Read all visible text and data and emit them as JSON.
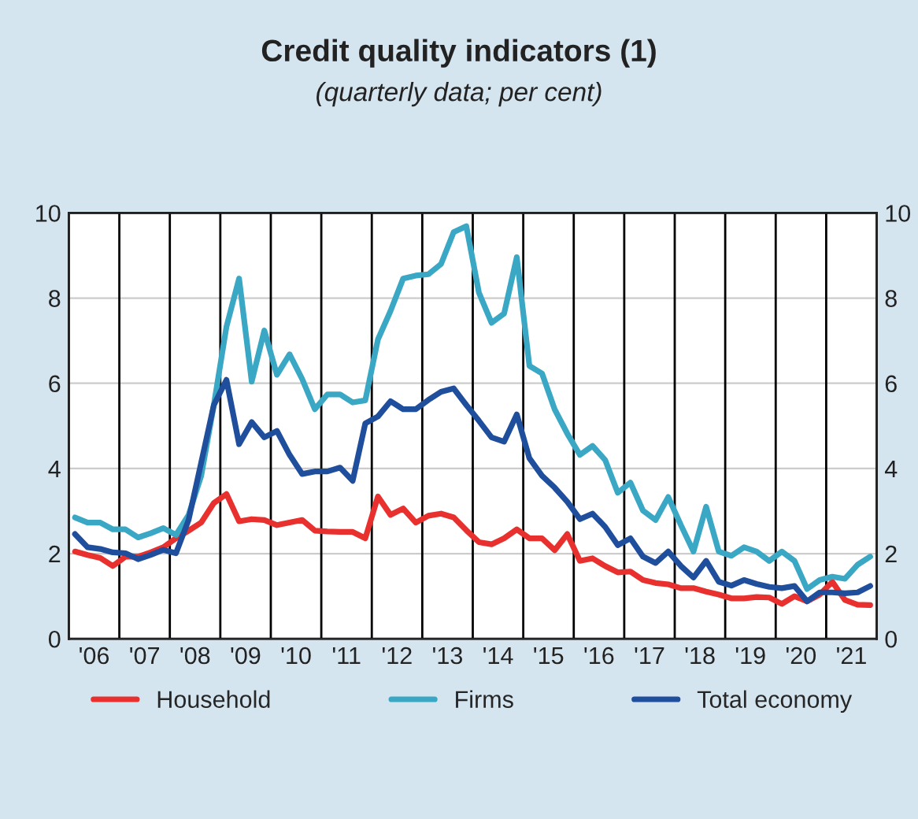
{
  "chart_data": {
    "type": "line",
    "title": "Credit quality indicators (1)",
    "subtitle": "(quarterly data; per cent)",
    "x": [
      "2006-02-15",
      "2006-05-15",
      "2006-08-15",
      "2006-11-15",
      "2007-02-15",
      "2007-05-15",
      "2007-08-15",
      "2007-11-15",
      "2008-02-15",
      "2008-05-15",
      "2008-08-15",
      "2008-11-15",
      "2009-02-15",
      "2009-05-15",
      "2009-08-15",
      "2009-11-15",
      "2010-02-15",
      "2010-05-15",
      "2010-08-15",
      "2010-11-15",
      "2011-02-15",
      "2011-05-15",
      "2011-08-15",
      "2011-11-15",
      "2012-02-15",
      "2012-05-15",
      "2012-08-15",
      "2012-11-15",
      "2013-02-15",
      "2013-05-15",
      "2013-08-15",
      "2013-11-15",
      "2014-02-15",
      "2014-05-15",
      "2014-08-15",
      "2014-11-15",
      "2015-02-15",
      "2015-05-15",
      "2015-08-15",
      "2015-11-15",
      "2016-02-15",
      "2016-05-15",
      "2016-08-15",
      "2016-11-15",
      "2017-02-15",
      "2017-05-15",
      "2017-08-15",
      "2017-11-15",
      "2018-02-15",
      "2018-05-15",
      "2018-08-15",
      "2018-11-15",
      "2019-02-15",
      "2019-05-15",
      "2019-08-15",
      "2019-11-15",
      "2020-02-15",
      "2020-05-15",
      "2020-08-15",
      "2020-11-15",
      "2021-02-15",
      "2021-05-15",
      "2021-08-15",
      "2021-11-15"
    ],
    "series": [
      {
        "name": "Household",
        "color": "#e8302f",
        "values": [
          2.05,
          1.97,
          1.9,
          1.71,
          1.93,
          1.93,
          2.03,
          2.15,
          2.36,
          2.54,
          2.73,
          3.19,
          3.4,
          2.76,
          2.81,
          2.79,
          2.67,
          2.73,
          2.79,
          2.54,
          2.52,
          2.51,
          2.51,
          2.36,
          3.34,
          2.91,
          3.06,
          2.73,
          2.89,
          2.94,
          2.85,
          2.55,
          2.27,
          2.22,
          2.36,
          2.57,
          2.36,
          2.36,
          2.08,
          2.46,
          1.83,
          1.89,
          1.71,
          1.56,
          1.58,
          1.38,
          1.31,
          1.28,
          1.19,
          1.19,
          1.11,
          1.04,
          0.95,
          0.95,
          0.98,
          0.97,
          0.82,
          1.0,
          0.88,
          1.04,
          1.34,
          0.91,
          0.8,
          0.79
        ]
      },
      {
        "name": "Firms",
        "color": "#3aa8c4",
        "values": [
          2.85,
          2.73,
          2.73,
          2.57,
          2.57,
          2.38,
          2.48,
          2.6,
          2.44,
          2.91,
          3.83,
          5.49,
          7.33,
          8.46,
          6.04,
          7.24,
          6.2,
          6.68,
          6.1,
          5.39,
          5.74,
          5.74,
          5.55,
          5.6,
          7.03,
          7.7,
          8.46,
          8.53,
          8.56,
          8.8,
          9.55,
          9.69,
          8.13,
          7.42,
          7.64,
          8.96,
          6.41,
          6.23,
          5.39,
          4.82,
          4.32,
          4.53,
          4.2,
          3.43,
          3.67,
          3.01,
          2.79,
          3.33,
          2.67,
          2.05,
          3.1,
          2.05,
          1.95,
          2.15,
          2.05,
          1.83,
          2.05,
          1.83,
          1.17,
          1.38,
          1.46,
          1.41,
          1.74,
          1.93
        ]
      },
      {
        "name": "Total economy",
        "color": "#1f4e9c",
        "values": [
          2.46,
          2.15,
          2.11,
          2.03,
          2.01,
          1.87,
          1.97,
          2.09,
          2.01,
          2.79,
          4.14,
          5.49,
          6.08,
          4.57,
          5.09,
          4.73,
          4.88,
          4.32,
          3.87,
          3.93,
          3.93,
          4.02,
          3.71,
          5.06,
          5.22,
          5.58,
          5.39,
          5.39,
          5.61,
          5.8,
          5.88,
          5.49,
          5.12,
          4.73,
          4.63,
          5.27,
          4.24,
          3.83,
          3.55,
          3.22,
          2.81,
          2.94,
          2.63,
          2.2,
          2.36,
          1.93,
          1.78,
          2.05,
          1.71,
          1.44,
          1.83,
          1.34,
          1.25,
          1.38,
          1.29,
          1.22,
          1.19,
          1.24,
          0.88,
          1.09,
          1.09,
          1.07,
          1.09,
          1.24
        ]
      }
    ],
    "xlim": [
      "2006-01-01",
      "2022-01-01"
    ],
    "xticks": [
      {
        "value": "2006-07-01",
        "label": "'06"
      },
      {
        "value": "2007-07-01",
        "label": "'07"
      },
      {
        "value": "2008-07-01",
        "label": "'08"
      },
      {
        "value": "2009-07-01",
        "label": "'09"
      },
      {
        "value": "2010-07-01",
        "label": "'10"
      },
      {
        "value": "2011-07-01",
        "label": "'11"
      },
      {
        "value": "2012-07-01",
        "label": "'12"
      },
      {
        "value": "2013-07-01",
        "label": "'13"
      },
      {
        "value": "2014-07-01",
        "label": "'14"
      },
      {
        "value": "2015-07-01",
        "label": "'15"
      },
      {
        "value": "2016-07-01",
        "label": "'16"
      },
      {
        "value": "2017-07-01",
        "label": "'17"
      },
      {
        "value": "2018-07-01",
        "label": "'18"
      },
      {
        "value": "2019-07-01",
        "label": "'19"
      },
      {
        "value": "2020-07-01",
        "label": "'20"
      },
      {
        "value": "2021-07-01",
        "label": "'21"
      }
    ],
    "ylim": [
      0,
      10
    ],
    "yticks": [
      0,
      2,
      4,
      6,
      8,
      10
    ],
    "y2lim": [
      0,
      10
    ],
    "y2ticks": [
      0,
      2,
      4,
      6,
      8,
      10
    ],
    "ref_lines": [
      {
        "axis": "x",
        "value": "2007-01-01",
        "color": "#000000"
      },
      {
        "axis": "x",
        "value": "2008-01-01",
        "color": "#000000"
      },
      {
        "axis": "x",
        "value": "2009-01-01",
        "color": "#000000"
      },
      {
        "axis": "x",
        "value": "2010-01-01",
        "color": "#000000"
      },
      {
        "axis": "x",
        "value": "2011-01-01",
        "color": "#000000"
      },
      {
        "axis": "x",
        "value": "2012-01-01",
        "color": "#000000"
      },
      {
        "axis": "x",
        "value": "2013-01-01",
        "color": "#000000"
      },
      {
        "axis": "x",
        "value": "2014-01-01",
        "color": "#000000"
      },
      {
        "axis": "x",
        "value": "2015-01-01",
        "color": "#000000"
      },
      {
        "axis": "x",
        "value": "2016-01-01",
        "color": "#000000"
      },
      {
        "axis": "x",
        "value": "2017-01-01",
        "color": "#000000"
      },
      {
        "axis": "x",
        "value": "2018-01-01",
        "color": "#000000"
      },
      {
        "axis": "x",
        "value": "2019-01-01",
        "color": "#000000"
      },
      {
        "axis": "x",
        "value": "2020-01-01",
        "color": "#000000"
      },
      {
        "axis": "x",
        "value": "2021-01-01",
        "color": "#000000"
      }
    ],
    "grid": "y",
    "legend": "bottom",
    "marker": "none",
    "line_style": "solid"
  }
}
